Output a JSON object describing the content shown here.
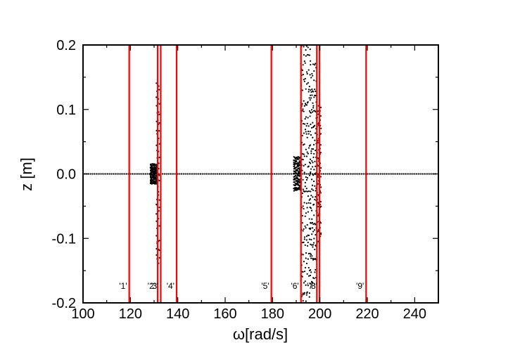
{
  "chart_data": {
    "type": "scatter",
    "title": "",
    "xlabel": "ω[rad/s]",
    "ylabel": "z [m]",
    "xlim": [
      100,
      250
    ],
    "ylim": [
      -0.2,
      0.2
    ],
    "x_ticks": [
      100,
      120,
      140,
      160,
      180,
      200,
      220,
      240
    ],
    "x_tick_labels": [
      "100",
      "120",
      "140",
      "160",
      "180",
      "200",
      "220",
      "240"
    ],
    "y_ticks": [
      -0.2,
      -0.1,
      0.0,
      0.1,
      0.2
    ],
    "y_tick_labels": [
      "-0.2",
      "-0.1",
      "0.0",
      "0.1",
      "0.2"
    ],
    "grid": false,
    "line_color": "#ff0000",
    "point_color": "#000000",
    "vertical_lines": [
      {
        "x": 119.5,
        "label": "'1'"
      },
      {
        "x": 131.5,
        "label": "'2'"
      },
      {
        "x": 132.8,
        "label": "'3'"
      },
      {
        "x": 139.5,
        "label": "'4'"
      },
      {
        "x": 179.5,
        "label": "'5'"
      },
      {
        "x": 192.0,
        "label": "'6'"
      },
      {
        "x": 198.7,
        "label": "'7'"
      },
      {
        "x": 199.8,
        "label": "'8'"
      },
      {
        "x": 219.5,
        "label": "'9'"
      }
    ],
    "scatter_baseline": {
      "x_start": 100,
      "x_end": 249.5,
      "step": 0.8,
      "y": 0.0
    },
    "scatter_clusters": [
      {
        "x_start": 128.5,
        "x_end": 131.2,
        "y_min": -0.015,
        "y_max": 0.015
      },
      {
        "x_start": 131.0,
        "x_end": 132.3,
        "y_min": -0.135,
        "y_max": 0.135
      },
      {
        "x_start": 189.0,
        "x_end": 192.0,
        "y_min": -0.025,
        "y_max": 0.025
      },
      {
        "x_start": 192.0,
        "x_end": 196.0,
        "y_min": -0.2,
        "y_max": 0.2
      },
      {
        "x_start": 196.0,
        "x_end": 198.6,
        "y_min": -0.16,
        "y_max": 0.16
      },
      {
        "x_start": 198.9,
        "x_end": 200.5,
        "y_min": -0.1,
        "y_max": 0.1
      }
    ]
  }
}
